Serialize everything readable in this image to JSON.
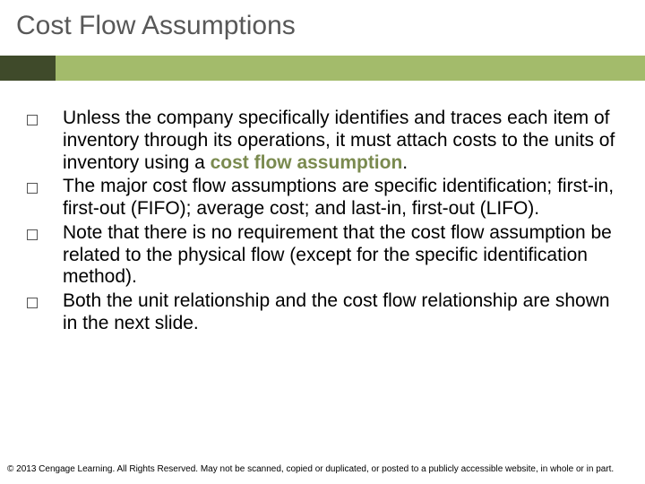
{
  "title": "Cost Flow Assumptions",
  "accent": {
    "dark_color": "#3f4a2a",
    "light_color": "#a3bb6b"
  },
  "bullets": {
    "b1_pre": "Unless the company specifically identifies and traces each item of inventory through its operations, it must attach costs to the units of inventory using a ",
    "b1_bold": "cost flow assumption",
    "b1_post": ".",
    "b2": "The major cost flow assumptions are specific identification; first-in, first-out (FIFO); average cost; and last-in, first-out (LIFO).",
    "b3": "Note that there is no requirement that the cost flow assumption be related to the physical flow (except for the specific identification method).",
    "b4": "Both the unit relationship and the cost flow relationship are shown in the next slide."
  },
  "footer": "© 2013 Cengage Learning. All Rights Reserved. May not be scanned, copied or duplicated, or posted to a publicly accessible website, in whole or in part.",
  "typography": {
    "title_fontsize": 30,
    "title_color": "#585858",
    "body_fontsize": 21,
    "body_color": "#000000",
    "bold_color": "#7a8a4f",
    "footer_fontsize": 10
  }
}
